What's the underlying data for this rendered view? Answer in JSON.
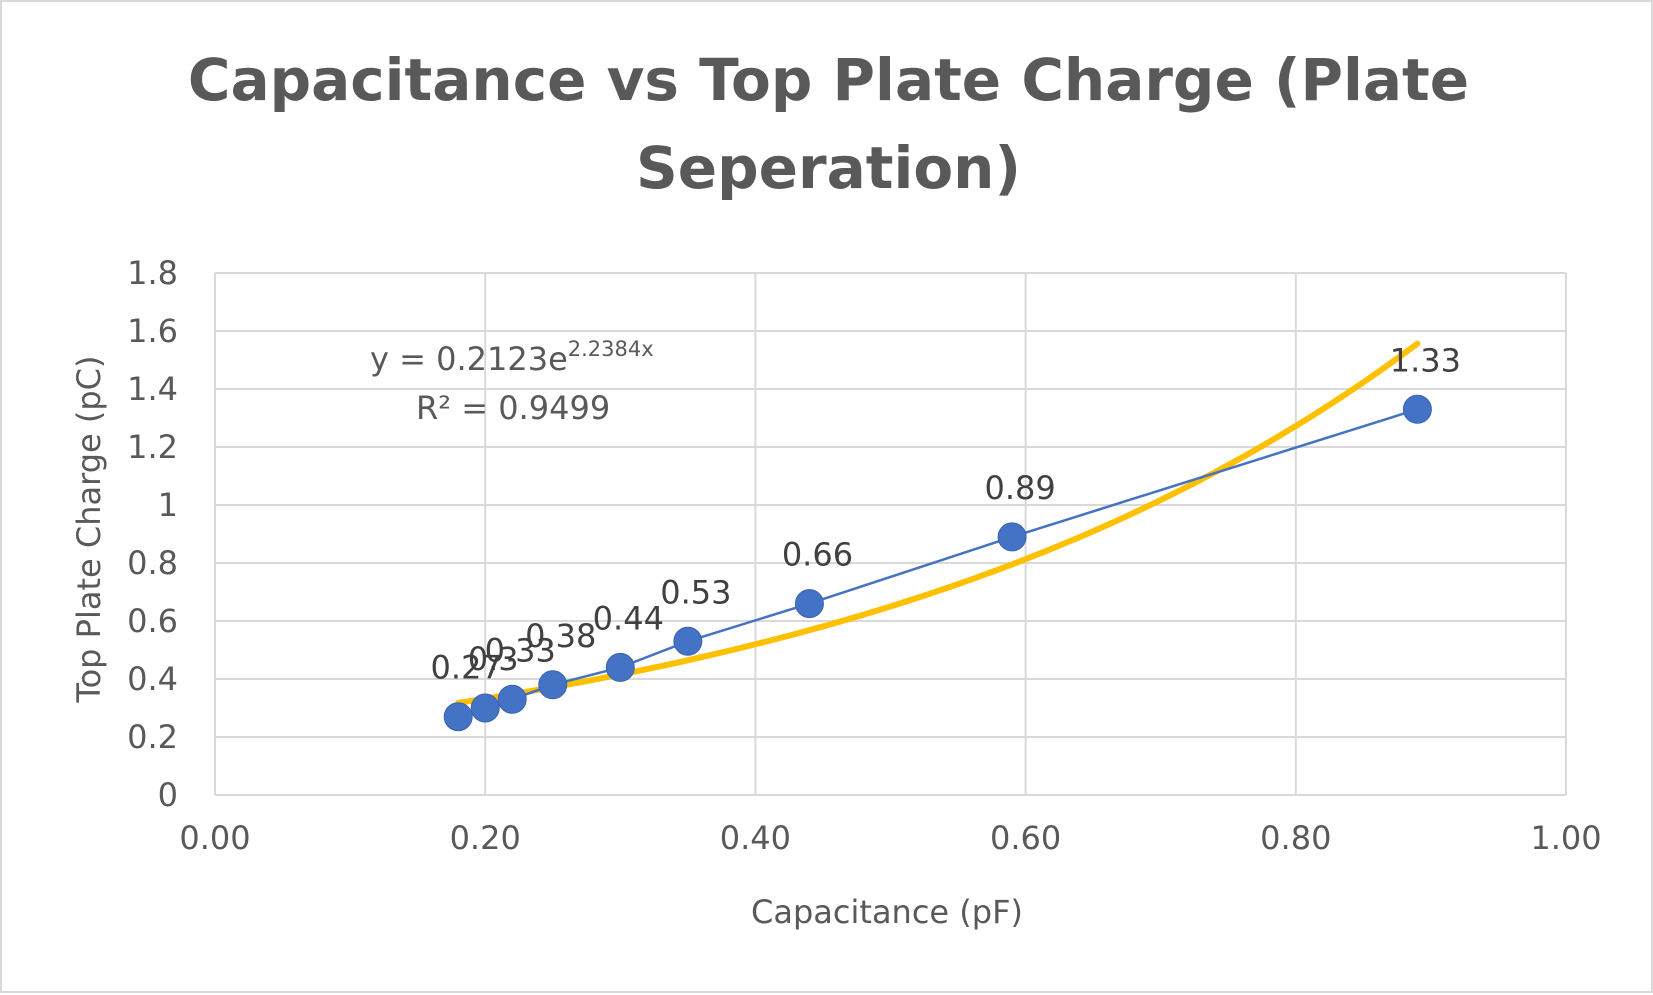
{
  "chart_data": {
    "type": "scatter",
    "title_lines": [
      "Capacitance vs Top Plate Charge (Plate",
      "Seperation)"
    ],
    "xlabel": "Capacitance (pF)",
    "ylabel": "Top Plate Charge (pC)",
    "xlim": [
      0,
      1
    ],
    "ylim": [
      0,
      1.8
    ],
    "x_ticks": [
      "0.00",
      "0.20",
      "0.40",
      "0.60",
      "0.80",
      "1.00"
    ],
    "y_ticks": [
      "0",
      "0.2",
      "0.4",
      "0.6",
      "0.8",
      "1",
      "1.2",
      "1.4",
      "1.6",
      "1.8"
    ],
    "grid": true,
    "legend": "none",
    "series": [
      {
        "x": [
          0.18,
          0.2,
          0.22,
          0.25,
          0.3,
          0.35,
          0.44,
          0.59,
          0.89
        ],
        "y": [
          0.27,
          0.3,
          0.33,
          0.38,
          0.44,
          0.53,
          0.66,
          0.89,
          1.33
        ],
        "data_labels": [
          "0.27",
          "0.3",
          "0.33",
          "0.38",
          "0.44",
          "0.53",
          "0.66",
          "0.89",
          "1.33"
        ],
        "color": "#4472c4"
      }
    ],
    "trendline": {
      "type": "exponential",
      "a": 0.2123,
      "b": 2.2384,
      "x_range": [
        0.18,
        0.89
      ],
      "color": "#ffc000",
      "equation_prefix": "y = 0.2123e",
      "equation_exponent": "2.2384x",
      "r_squared_text": "R² = 0.9499"
    }
  }
}
